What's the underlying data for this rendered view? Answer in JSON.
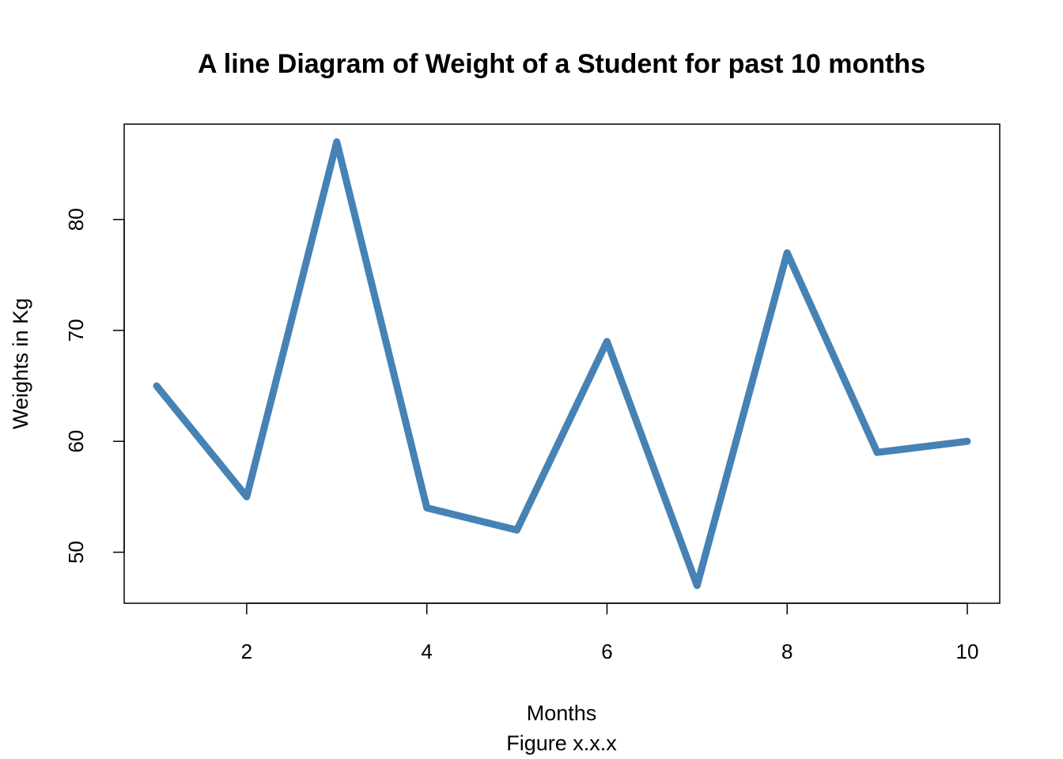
{
  "chart_data": {
    "type": "line",
    "title": "A line Diagram of Weight of a Student for past 10 months",
    "xlabel": "Months",
    "sublabel": "Figure x.x.x",
    "ylabel": "Weights in Kg",
    "x": [
      1,
      2,
      3,
      4,
      5,
      6,
      7,
      8,
      9,
      10
    ],
    "series": [
      {
        "values": [
          65,
          55,
          87,
          54,
          52,
          69,
          47,
          77,
          59,
          60
        ],
        "color": "#4682B4"
      }
    ],
    "xlim": [
      0.64,
      10.36
    ],
    "ylim": [
      45.4,
      88.6
    ],
    "xticks": [
      2,
      4,
      6,
      8,
      10
    ],
    "xtick_labels": [
      "2",
      "4",
      "6",
      "8",
      "10"
    ],
    "yticks": [
      50,
      60,
      70,
      80
    ],
    "ytick_labels": [
      "50",
      "60",
      "70",
      "80"
    ],
    "grid": false,
    "legend": "none"
  }
}
